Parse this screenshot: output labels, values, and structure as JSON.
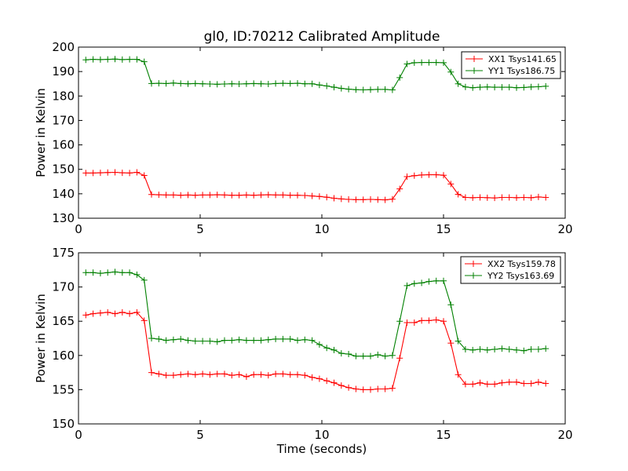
{
  "figure": {
    "title": "gl0, ID:70212 Calibrated Amplitude",
    "background": "#ffffff"
  },
  "chart_data": [
    {
      "type": "line",
      "title": "gl0, ID:70212 Calibrated Amplitude",
      "xlabel": "",
      "ylabel": "Power in Kelvin",
      "xlim": [
        0,
        20
      ],
      "ylim": [
        130,
        200
      ],
      "xticks": [
        0,
        5,
        10,
        15,
        20
      ],
      "yticks": [
        130,
        140,
        150,
        160,
        170,
        180,
        190,
        200
      ],
      "grid": false,
      "legend_position": "top-right",
      "x": [
        0.3,
        0.6,
        0.9,
        1.2,
        1.5,
        1.8,
        2.1,
        2.4,
        2.7,
        3.0,
        3.3,
        3.6,
        3.9,
        4.2,
        4.5,
        4.8,
        5.1,
        5.4,
        5.7,
        6.0,
        6.3,
        6.6,
        6.9,
        7.2,
        7.5,
        7.8,
        8.1,
        8.4,
        8.7,
        9.0,
        9.3,
        9.6,
        9.9,
        10.2,
        10.5,
        10.8,
        11.1,
        11.4,
        11.7,
        12.0,
        12.3,
        12.6,
        12.9,
        13.2,
        13.5,
        13.8,
        14.1,
        14.4,
        14.7,
        15.0,
        15.3,
        15.6,
        15.9,
        16.2,
        16.5,
        16.8,
        17.1,
        17.4,
        17.7,
        18.0,
        18.3,
        18.6,
        18.9,
        19.2
      ],
      "series": [
        {
          "name": "XX1 Tsys141.65",
          "color": "#ff0000",
          "values": [
            148.5,
            148.5,
            148.6,
            148.7,
            148.8,
            148.6,
            148.5,
            148.8,
            147.5,
            139.7,
            139.6,
            139.5,
            139.5,
            139.4,
            139.5,
            139.4,
            139.5,
            139.5,
            139.6,
            139.5,
            139.4,
            139.4,
            139.5,
            139.4,
            139.5,
            139.6,
            139.5,
            139.5,
            139.4,
            139.4,
            139.3,
            139.1,
            138.9,
            138.6,
            138.2,
            137.9,
            137.7,
            137.6,
            137.6,
            137.7,
            137.6,
            137.5,
            137.8,
            142.0,
            147.0,
            147.4,
            147.7,
            147.8,
            147.8,
            147.6,
            144.0,
            139.8,
            138.5,
            138.4,
            138.5,
            138.4,
            138.3,
            138.5,
            138.5,
            138.4,
            138.5,
            138.4,
            138.7,
            138.5
          ]
        },
        {
          "name": "YY1 Tsys186.75",
          "color": "#008000",
          "values": [
            194.8,
            195.0,
            194.9,
            195.0,
            195.1,
            194.9,
            195.0,
            195.0,
            194.0,
            185.1,
            185.2,
            185.1,
            185.3,
            185.1,
            185.0,
            185.1,
            185.0,
            184.9,
            184.8,
            184.9,
            185.0,
            184.9,
            185.0,
            185.1,
            185.0,
            184.9,
            185.1,
            185.2,
            185.1,
            185.2,
            185.0,
            185.0,
            184.5,
            184.1,
            183.6,
            183.1,
            182.8,
            182.6,
            182.5,
            182.6,
            182.7,
            182.7,
            182.5,
            187.5,
            193.1,
            193.6,
            193.7,
            193.7,
            193.7,
            193.6,
            189.8,
            185.0,
            183.7,
            183.4,
            183.6,
            183.7,
            183.6,
            183.6,
            183.6,
            183.4,
            183.5,
            183.7,
            183.8,
            184.0
          ]
        }
      ]
    },
    {
      "type": "line",
      "title": "",
      "xlabel": "Time (seconds)",
      "ylabel": "Power in Kelvin",
      "xlim": [
        0,
        20
      ],
      "ylim": [
        150,
        175
      ],
      "xticks": [
        0,
        5,
        10,
        15,
        20
      ],
      "yticks": [
        150,
        155,
        160,
        165,
        170,
        175
      ],
      "grid": false,
      "legend_position": "top-right",
      "x": [
        0.3,
        0.6,
        0.9,
        1.2,
        1.5,
        1.8,
        2.1,
        2.4,
        2.7,
        3.0,
        3.3,
        3.6,
        3.9,
        4.2,
        4.5,
        4.8,
        5.1,
        5.4,
        5.7,
        6.0,
        6.3,
        6.6,
        6.9,
        7.2,
        7.5,
        7.8,
        8.1,
        8.4,
        8.7,
        9.0,
        9.3,
        9.6,
        9.9,
        10.2,
        10.5,
        10.8,
        11.1,
        11.4,
        11.7,
        12.0,
        12.3,
        12.6,
        12.9,
        13.2,
        13.5,
        13.8,
        14.1,
        14.4,
        14.7,
        15.0,
        15.3,
        15.6,
        15.9,
        16.2,
        16.5,
        16.8,
        17.1,
        17.4,
        17.7,
        18.0,
        18.3,
        18.6,
        18.9,
        19.2
      ],
      "series": [
        {
          "name": "XX2 Tsys159.78",
          "color": "#ff0000",
          "values": [
            165.9,
            166.1,
            166.2,
            166.3,
            166.1,
            166.3,
            166.1,
            166.3,
            165.1,
            157.5,
            157.3,
            157.1,
            157.1,
            157.2,
            157.3,
            157.2,
            157.3,
            157.2,
            157.3,
            157.3,
            157.1,
            157.2,
            156.9,
            157.2,
            157.2,
            157.1,
            157.3,
            157.3,
            157.2,
            157.2,
            157.1,
            156.8,
            156.6,
            156.3,
            156.0,
            155.6,
            155.3,
            155.1,
            155.0,
            155.0,
            155.1,
            155.1,
            155.2,
            159.6,
            164.8,
            164.8,
            165.1,
            165.1,
            165.2,
            165.0,
            161.8,
            157.2,
            155.8,
            155.8,
            156.0,
            155.8,
            155.8,
            156.0,
            156.1,
            156.1,
            155.9,
            155.9,
            156.1,
            155.9
          ]
        },
        {
          "name": "YY2 Tsys163.69",
          "color": "#008000",
          "values": [
            172.1,
            172.1,
            172.0,
            172.1,
            172.2,
            172.1,
            172.1,
            171.8,
            171.0,
            162.5,
            162.4,
            162.2,
            162.3,
            162.4,
            162.2,
            162.1,
            162.1,
            162.1,
            162.0,
            162.2,
            162.2,
            162.3,
            162.2,
            162.2,
            162.2,
            162.3,
            162.4,
            162.4,
            162.4,
            162.2,
            162.3,
            162.2,
            161.6,
            161.1,
            160.8,
            160.3,
            160.2,
            159.9,
            159.9,
            159.9,
            160.1,
            159.9,
            160.0,
            165.0,
            170.2,
            170.5,
            170.6,
            170.8,
            170.9,
            170.9,
            167.4,
            162.1,
            160.9,
            160.8,
            160.9,
            160.8,
            160.9,
            161.0,
            160.9,
            160.8,
            160.7,
            160.9,
            160.9,
            161.0
          ]
        }
      ]
    }
  ]
}
